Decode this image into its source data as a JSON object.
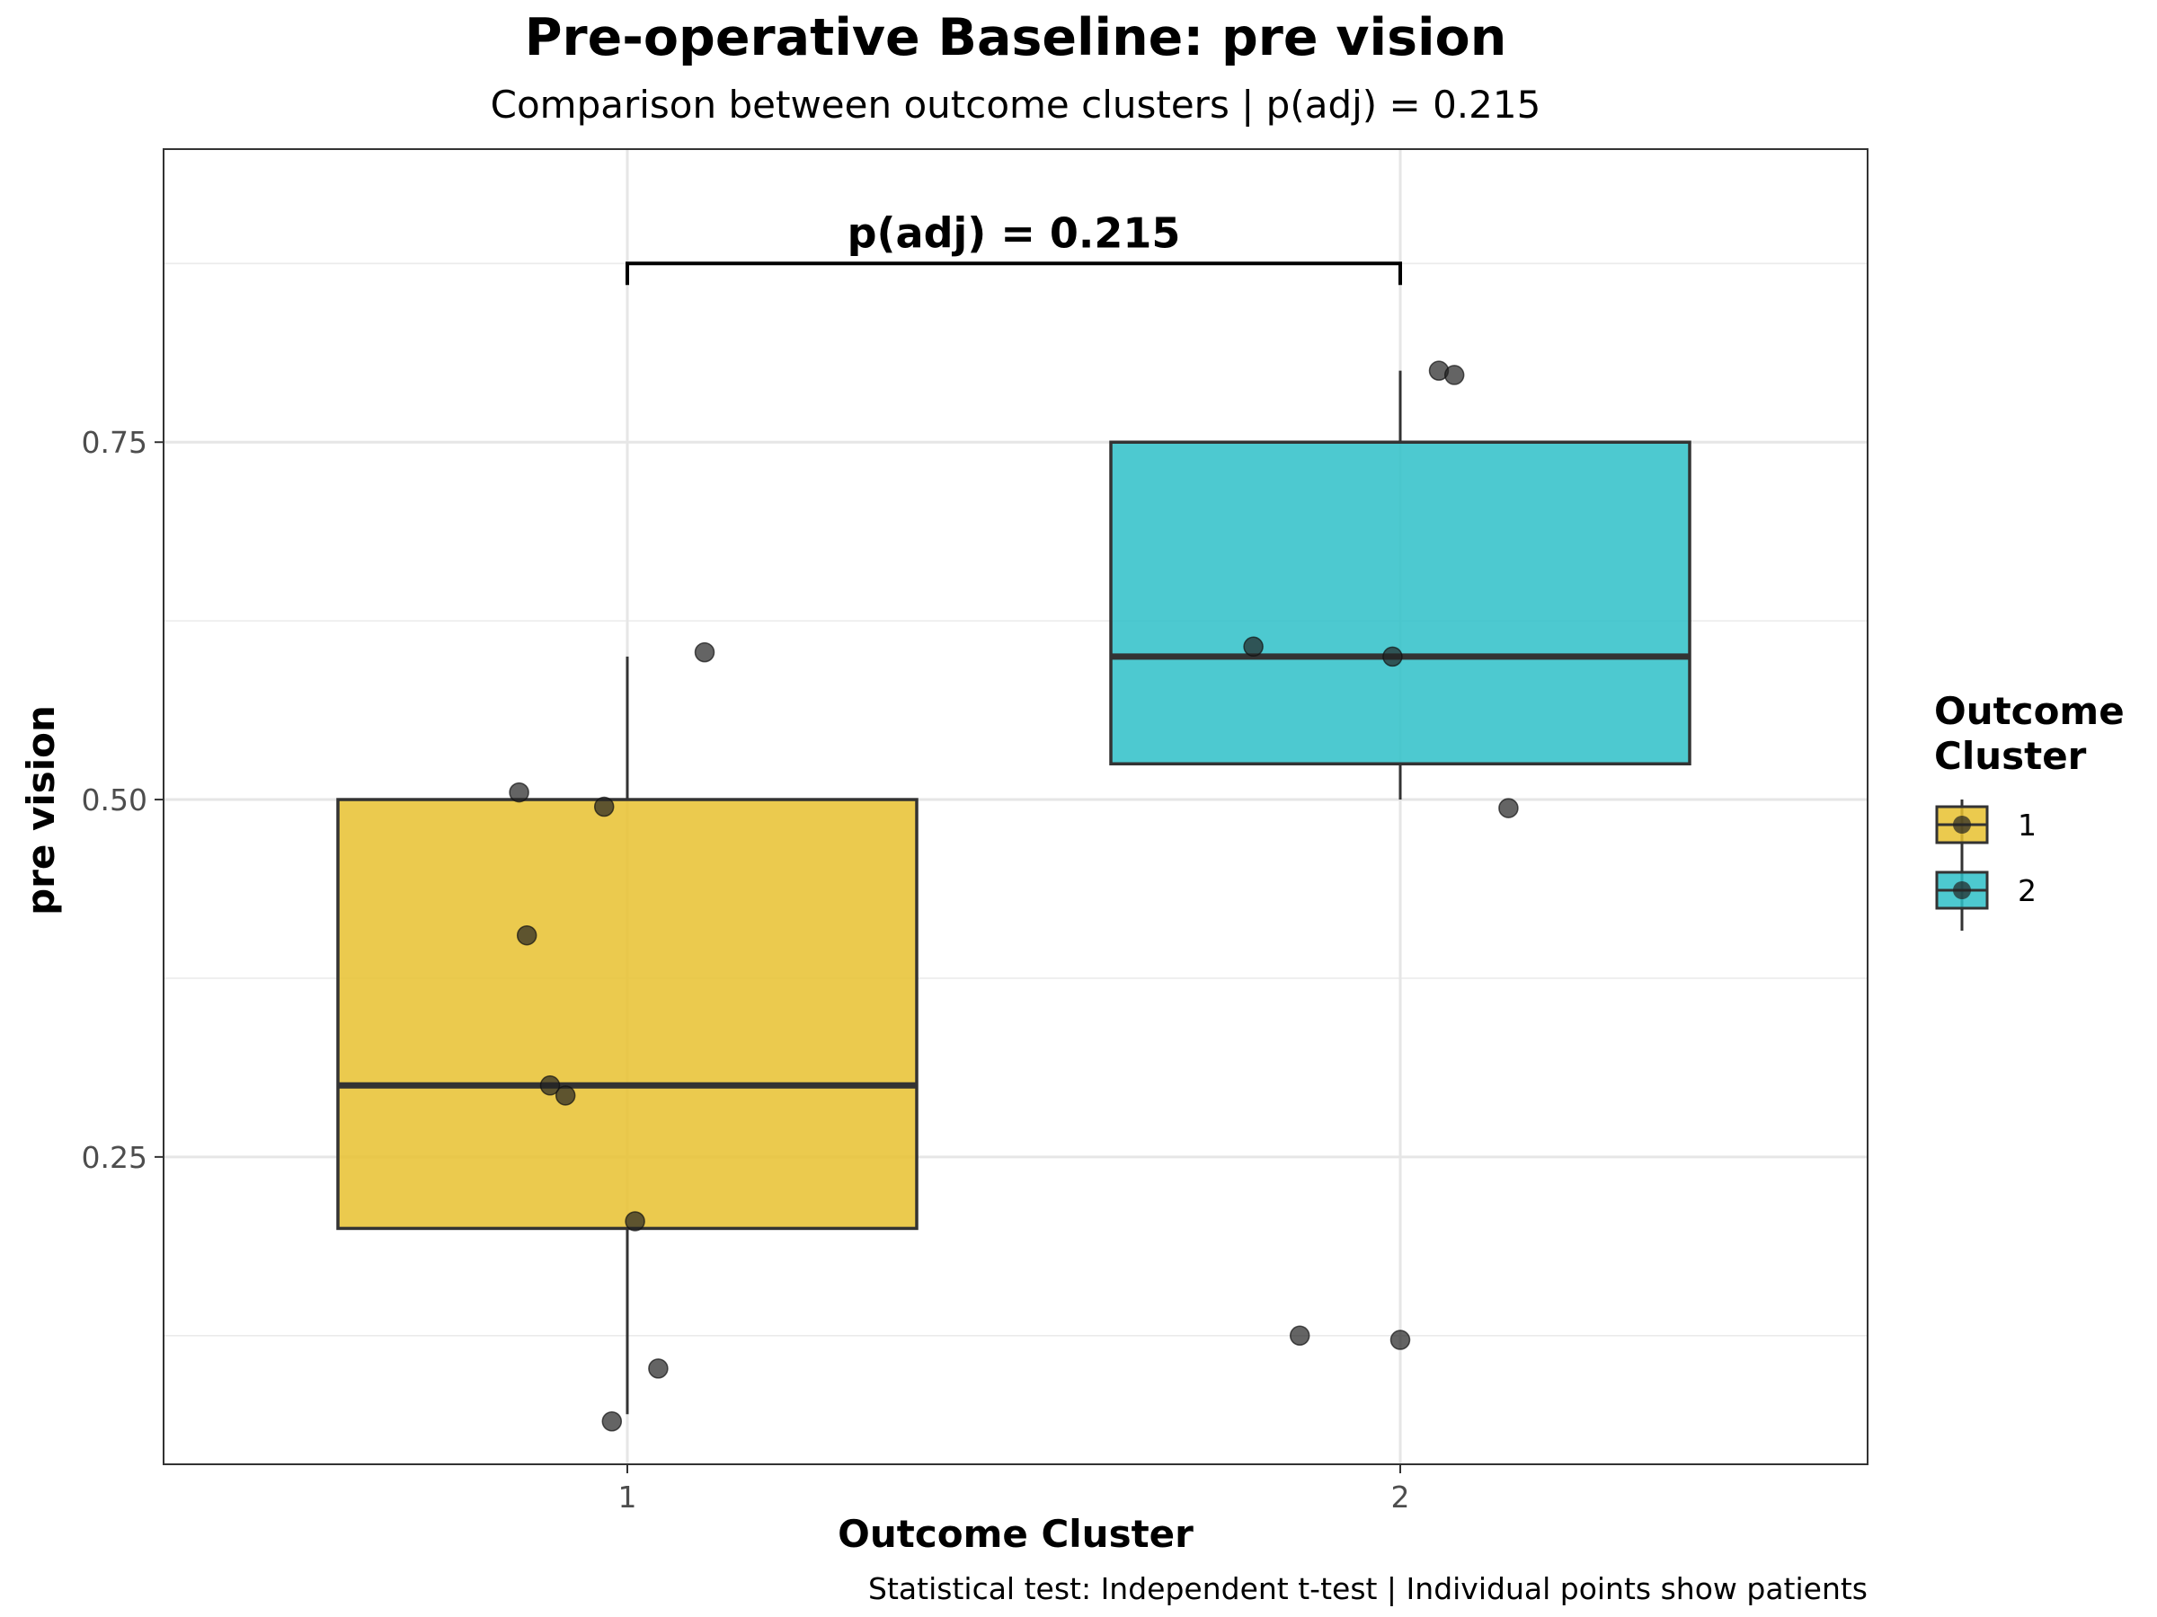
{
  "chart_data": {
    "type": "box",
    "title": "Pre-operative Baseline: pre vision",
    "subtitle": "Comparison between outcome clusters | p(adj) = 0.215",
    "xlabel": "Outcome Cluster",
    "ylabel": "pre vision",
    "caption": "Statistical test: Independent t-test | Individual points show patients",
    "categories": [
      "1",
      "2"
    ],
    "ylim": [
      0.035,
      0.955
    ],
    "yticks": [
      0.25,
      0.5,
      0.75
    ],
    "ytick_labels": [
      "0.25",
      "0.50",
      "0.75"
    ],
    "grid": true,
    "legend": {
      "title_lines": [
        "Outcome",
        "Cluster"
      ],
      "placement": "right",
      "entries": [
        "1",
        "2"
      ]
    },
    "colors": {
      "1": "#E7C12F",
      "2": "#2EBFC8"
    },
    "series": [
      {
        "name": "1",
        "box": {
          "q1": 0.2,
          "median": 0.3,
          "q3": 0.5,
          "whisker_low": 0.07,
          "whisker_high": 0.6
        },
        "points": [
          {
            "x": 0.86,
            "y": 0.505
          },
          {
            "x": 0.97,
            "y": 0.495
          },
          {
            "x": 1.1,
            "y": 0.603
          },
          {
            "x": 0.87,
            "y": 0.405
          },
          {
            "x": 0.9,
            "y": 0.3
          },
          {
            "x": 0.92,
            "y": 0.293
          },
          {
            "x": 1.01,
            "y": 0.205
          },
          {
            "x": 1.04,
            "y": 0.102
          },
          {
            "x": 0.98,
            "y": 0.065
          }
        ]
      },
      {
        "name": "2",
        "box": {
          "q1": 0.525,
          "median": 0.6,
          "q3": 0.75,
          "whisker_low": 0.5,
          "whisker_high": 0.8
        },
        "points": [
          {
            "x": 2.05,
            "y": 0.8
          },
          {
            "x": 2.07,
            "y": 0.797
          },
          {
            "x": 1.81,
            "y": 0.607
          },
          {
            "x": 1.99,
            "y": 0.6
          },
          {
            "x": 2.14,
            "y": 0.494
          },
          {
            "x": 1.87,
            "y": 0.125
          },
          {
            "x": 2.0,
            "y": 0.122
          }
        ]
      }
    ],
    "annotation": {
      "label": "p(adj) = 0.215",
      "from": "1",
      "to": "2",
      "y": 0.875
    }
  }
}
